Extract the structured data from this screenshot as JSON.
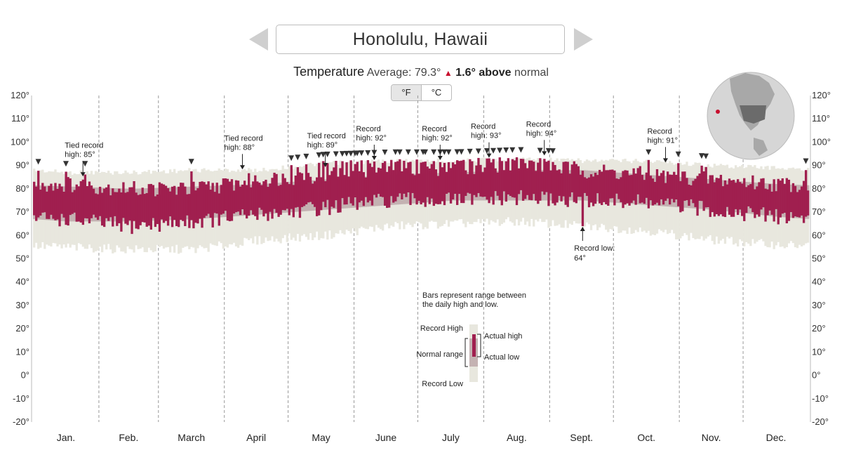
{
  "header": {
    "prev_label": "previous city",
    "next_label": "next city",
    "city": "Honolulu, Hawaii"
  },
  "summary": {
    "label": "Temperature",
    "average_text": "Average: 79.3°",
    "arrow": "▲",
    "delta_text": "1.6° above",
    "tail": "normal"
  },
  "units": {
    "f": "°F",
    "c": "°C",
    "active": "f"
  },
  "colors": {
    "actual": "#a01f4f",
    "normal": "#c4b2b2",
    "record": "#e8e7de",
    "grid": "#999999",
    "axis": "#bbbbbb"
  },
  "chart_data": {
    "type": "bar",
    "title": "Honolulu, Hawaii — Temperature",
    "ylabel": "°F",
    "ylim": [
      -20,
      120
    ],
    "yticks": [
      "120°",
      "110°",
      "100°",
      "90°",
      "80°",
      "70°",
      "60°",
      "50°",
      "40°",
      "30°",
      "20°",
      "10°",
      "0°",
      "-10°",
      "-20°"
    ],
    "ytick_values": [
      120,
      110,
      100,
      90,
      80,
      70,
      60,
      50,
      40,
      30,
      20,
      10,
      0,
      -10,
      -20
    ],
    "months": [
      "Jan.",
      "Feb.",
      "March",
      "April",
      "May",
      "June",
      "July",
      "Aug.",
      "Sept.",
      "Oct.",
      "Nov.",
      "Dec."
    ],
    "month_days": [
      31,
      28,
      31,
      30,
      31,
      30,
      31,
      31,
      30,
      31,
      30,
      31
    ],
    "series_description": "Daily bars: record range, normal range, actual high/low (°F)",
    "normal_high": [
      81,
      80,
      81,
      82,
      84,
      86,
      87,
      88,
      88,
      86,
      84,
      82
    ],
    "normal_low": [
      66,
      66,
      67,
      69,
      71,
      73,
      75,
      75,
      75,
      73,
      71,
      68
    ],
    "record_high": [
      88,
      88,
      89,
      89,
      92,
      93,
      93,
      94,
      93,
      93,
      91,
      90
    ],
    "record_low": [
      55,
      54,
      54,
      58,
      60,
      64,
      65,
      66,
      64,
      62,
      58,
      56
    ],
    "actual_high": [
      82,
      80,
      80,
      84,
      86,
      89,
      89,
      91,
      88,
      86,
      84,
      82
    ],
    "actual_low": [
      67,
      64,
      66,
      69,
      72,
      75,
      75,
      76,
      75,
      74,
      71,
      68
    ],
    "record_days": [
      2,
      15,
      24,
      74,
      121,
      124,
      128,
      134,
      136,
      138,
      142,
      145,
      147,
      149,
      151,
      152,
      154,
      157,
      160,
      165,
      170,
      172,
      176,
      180,
      183,
      184,
      188,
      191,
      193,
      195,
      199,
      201,
      205,
      209,
      213,
      216,
      219,
      222,
      225,
      229,
      238,
      242,
      244,
      289,
      303,
      314,
      316,
      363
    ],
    "annotations": [
      {
        "day": 23,
        "value": 85,
        "lines": [
          "Tied record",
          "high: 85°"
        ],
        "dir": "down"
      },
      {
        "day": 98,
        "value": 88,
        "lines": [
          "Tied record",
          "high: 88°"
        ],
        "dir": "down"
      },
      {
        "day": 137,
        "value": 89,
        "lines": [
          "Tied record",
          "high: 89°"
        ],
        "dir": "down"
      },
      {
        "day": 160,
        "value": 92,
        "lines": [
          "Record",
          "high: 92°"
        ],
        "dir": "down"
      },
      {
        "day": 191,
        "value": 92,
        "lines": [
          "Record",
          "high: 92°"
        ],
        "dir": "down"
      },
      {
        "day": 214,
        "value": 93,
        "lines": [
          "Record",
          "high: 93°"
        ],
        "dir": "down"
      },
      {
        "day": 240,
        "value": 94,
        "lines": [
          "Record",
          "high: 94°"
        ],
        "dir": "down"
      },
      {
        "day": 297,
        "value": 91,
        "lines": [
          "Record",
          "high: 91°"
        ],
        "dir": "down"
      },
      {
        "day": 258,
        "value": 64,
        "lines": [
          "Record low:",
          "64°"
        ],
        "dir": "up"
      }
    ]
  },
  "legend": {
    "intro_line1": "Bars represent range between",
    "intro_line2": "the daily high and low.",
    "record_high": "Record High",
    "normal_range": "Normal range",
    "record_low": "Record Low",
    "actual_high": "Actual high",
    "actual_low": "Actual low"
  }
}
